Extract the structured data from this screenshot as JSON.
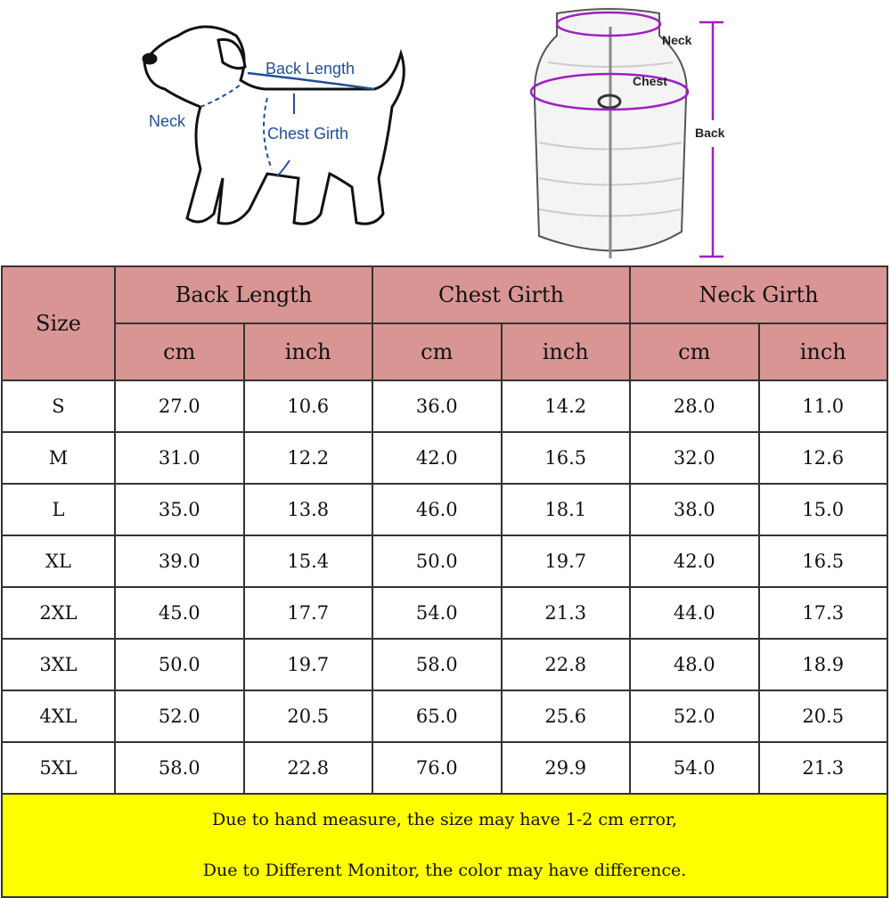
{
  "dog_illustration": {
    "labels": {
      "back_length": "Back Length",
      "neck": "Neck",
      "chest_girth": "Chest Girth"
    },
    "label_color": "#1f4e9c"
  },
  "vest_illustration": {
    "labels": {
      "neck": "Neck",
      "chest": "Chest",
      "back": "Back"
    },
    "arrow_color": "#a020c0"
  },
  "table": {
    "size_header": "Size",
    "groups": [
      "Back Length",
      "Chest Girth",
      "Neck Girth"
    ],
    "units": [
      "cm",
      "inch",
      "cm",
      "inch",
      "cm",
      "inch"
    ],
    "rows": [
      [
        "S",
        "27.0",
        "10.6",
        "36.0",
        "14.2",
        "28.0",
        "11.0"
      ],
      [
        "M",
        "31.0",
        "12.2",
        "42.0",
        "16.5",
        "32.0",
        "12.6"
      ],
      [
        "L",
        "35.0",
        "13.8",
        "46.0",
        "18.1",
        "38.0",
        "15.0"
      ],
      [
        "XL",
        "39.0",
        "15.4",
        "50.0",
        "19.7",
        "42.0",
        "16.5"
      ],
      [
        "2XL",
        "45.0",
        "17.7",
        "54.0",
        "21.3",
        "44.0",
        "17.3"
      ],
      [
        "3XL",
        "50.0",
        "19.7",
        "58.0",
        "22.8",
        "48.0",
        "18.9"
      ],
      [
        "4XL",
        "52.0",
        "20.5",
        "65.0",
        "25.6",
        "52.0",
        "20.5"
      ],
      [
        "5XL",
        "58.0",
        "22.8",
        "76.0",
        "29.9",
        "54.0",
        "21.3"
      ]
    ],
    "header_color": "#d99594",
    "note_color": "#ffff00"
  },
  "notes": [
    "Due to hand measure, the size may have 1-2 cm error,",
    "Due to Different Monitor, the color may have difference."
  ]
}
